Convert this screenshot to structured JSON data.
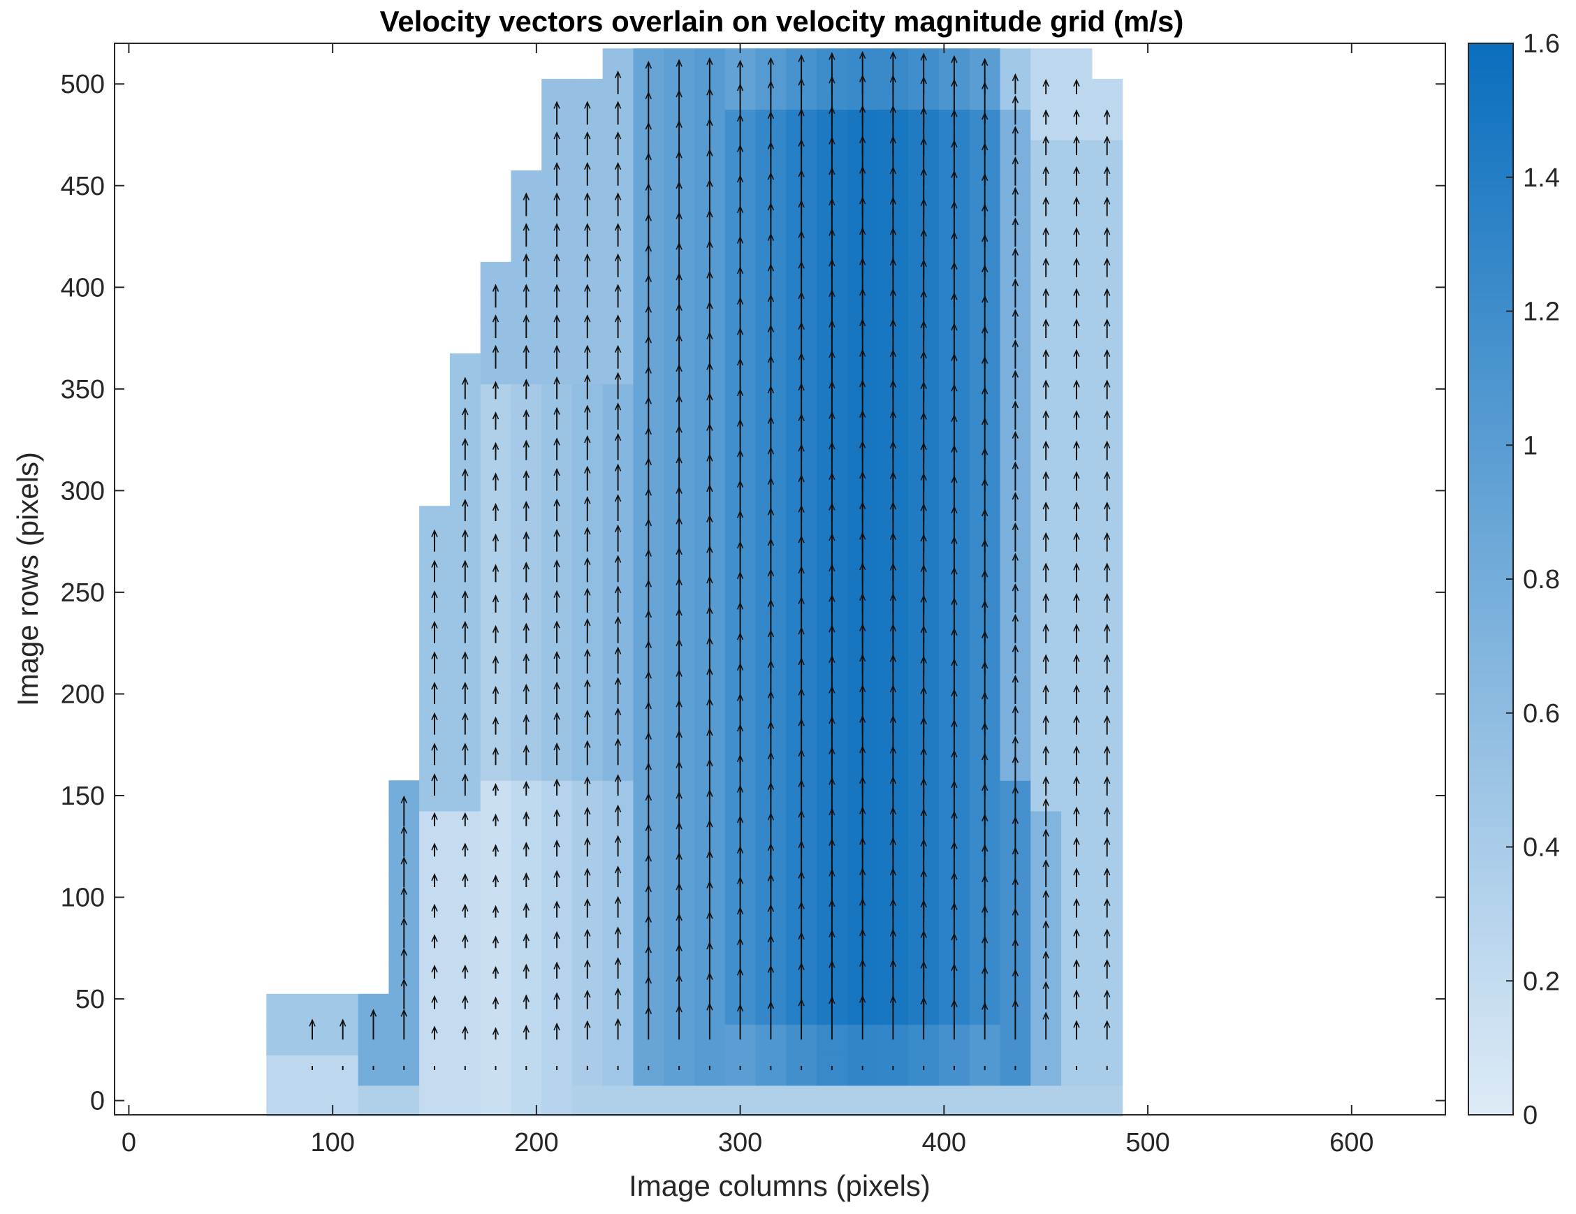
{
  "chart_data": {
    "type": "heatmap",
    "title": "Velocity vectors overlain on velocity magnitude grid (m/s)",
    "xlabel": "Image columns (pixels)",
    "ylabel": "Image rows (pixels)",
    "xlim": [
      -7,
      646
    ],
    "ylim": [
      -7,
      520
    ],
    "xticks": [
      0,
      100,
      200,
      300,
      400,
      500,
      600
    ],
    "yticks": [
      0,
      50,
      100,
      150,
      200,
      250,
      300,
      350,
      400,
      450,
      500
    ],
    "colorbar": {
      "range": [
        0,
        1.6
      ],
      "ticks": [
        0,
        0.2,
        0.4,
        0.6,
        0.8,
        1,
        1.2,
        1.4,
        1.6
      ],
      "tick_labels": [
        "0",
        "0.2",
        "0.4",
        "0.6",
        "0.8",
        "1",
        "1.2",
        "1.4",
        "1.6"
      ],
      "colormap": [
        "#deebf7",
        "#0a6ebd"
      ]
    },
    "grid": {
      "cell_size": 15,
      "column_centers_start": 75,
      "row_centers_start": 0,
      "column_count": 28,
      "row_count": 34,
      "extent": {
        "top_row_y": [
          [
            75,
            135,
            52
          ],
          [
            90,
            150,
            157
          ],
          [
            105,
            150,
            232
          ],
          [
            120,
            165,
            292
          ],
          [
            135,
            180,
            367
          ],
          [
            150,
            195,
            412
          ],
          [
            165,
            210,
            457
          ],
          [
            180,
            240,
            502
          ],
          [
            195,
            270,
            517
          ],
          [
            210,
            420,
            517
          ],
          [
            420,
            480,
            517
          ],
          [
            435,
            495,
            502
          ],
          [
            450,
            465,
            472
          ],
          [
            465,
            480,
            397
          ]
        ],
        "bottom_row_y": 0
      }
    },
    "vectors": {
      "note": "arrows point upward (increasing row), spacing 15 px",
      "spacing": 15
    },
    "max_velocity": 1.6,
    "grid_on": false
  }
}
